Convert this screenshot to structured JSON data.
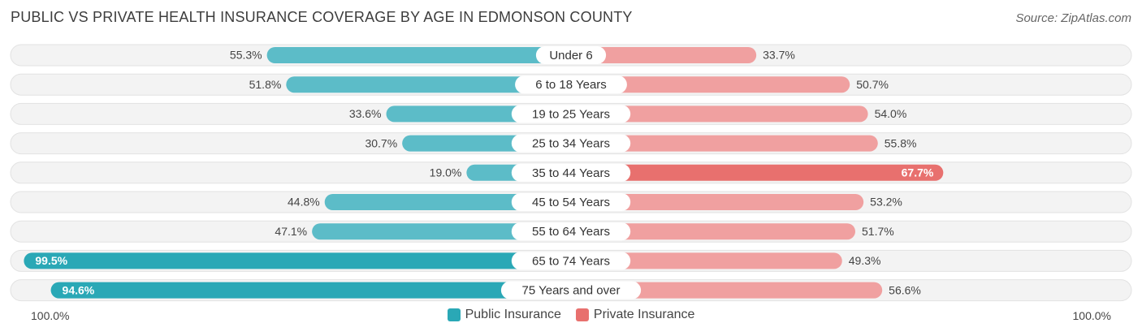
{
  "title": "PUBLIC VS PRIVATE HEALTH INSURANCE COVERAGE BY AGE IN EDMONSON COUNTY",
  "source": "Source: ZipAtlas.com",
  "axis": {
    "left_label": "100.0%",
    "right_label": "100.0%"
  },
  "legend": {
    "public_label": "Public Insurance",
    "private_label": "Private Insurance"
  },
  "colors": {
    "public": "#5cbcc8",
    "public_strong": "#2aa8b6",
    "private": "#f0a0a0",
    "private_strong": "#e8706e",
    "track": "#efefef"
  },
  "chart_data": {
    "type": "bar",
    "orientation": "horizontal-diverging",
    "categories": [
      "Under 6",
      "6 to 18 Years",
      "19 to 25 Years",
      "25 to 34 Years",
      "35 to 44 Years",
      "45 to 54 Years",
      "55 to 64 Years",
      "65 to 74 Years",
      "75 Years and over"
    ],
    "series": [
      {
        "name": "Public Insurance",
        "values": [
          55.3,
          51.8,
          33.6,
          30.7,
          19.0,
          44.8,
          47.1,
          99.5,
          94.6
        ]
      },
      {
        "name": "Private Insurance",
        "values": [
          33.7,
          50.7,
          54.0,
          55.8,
          67.7,
          53.2,
          51.7,
          49.3,
          56.6
        ]
      }
    ],
    "xlim": [
      0,
      100
    ],
    "value_format": "%",
    "legend_position": "bottom-center"
  }
}
